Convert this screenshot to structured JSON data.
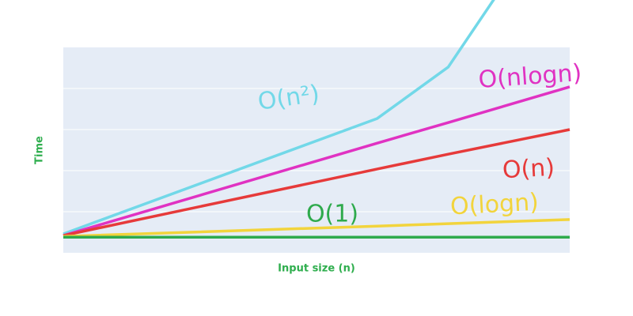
{
  "chart_data": {
    "type": "line",
    "x_label": "Input size (n)",
    "y_label": "Time",
    "x": [
      0,
      6.2,
      7.6,
      10
    ],
    "xlim": [
      0,
      10
    ],
    "ylim": [
      0,
      5
    ],
    "ygrid": [
      1,
      2,
      3,
      4
    ],
    "series": [
      {
        "name": "O(n²)",
        "color": "#72d8e8",
        "values": [
          0.46,
          3.27,
          4.52,
          8.9
        ]
      },
      {
        "name": "O(nlogn)",
        "color": "#e032c2",
        "values": [
          0.42,
          2.67,
          3.17,
          4.04
        ]
      },
      {
        "name": "O(n)",
        "color": "#e63a3a",
        "values": [
          0.42,
          2.04,
          2.4,
          3.0
        ]
      },
      {
        "name": "O(logn)",
        "color": "#f2d43c",
        "values": [
          0.4,
          0.65,
          0.71,
          0.81
        ]
      },
      {
        "name": "O(1)",
        "color": "#2eaa4c",
        "values": [
          0.38,
          0.38,
          0.38,
          0.38
        ]
      }
    ]
  }
}
